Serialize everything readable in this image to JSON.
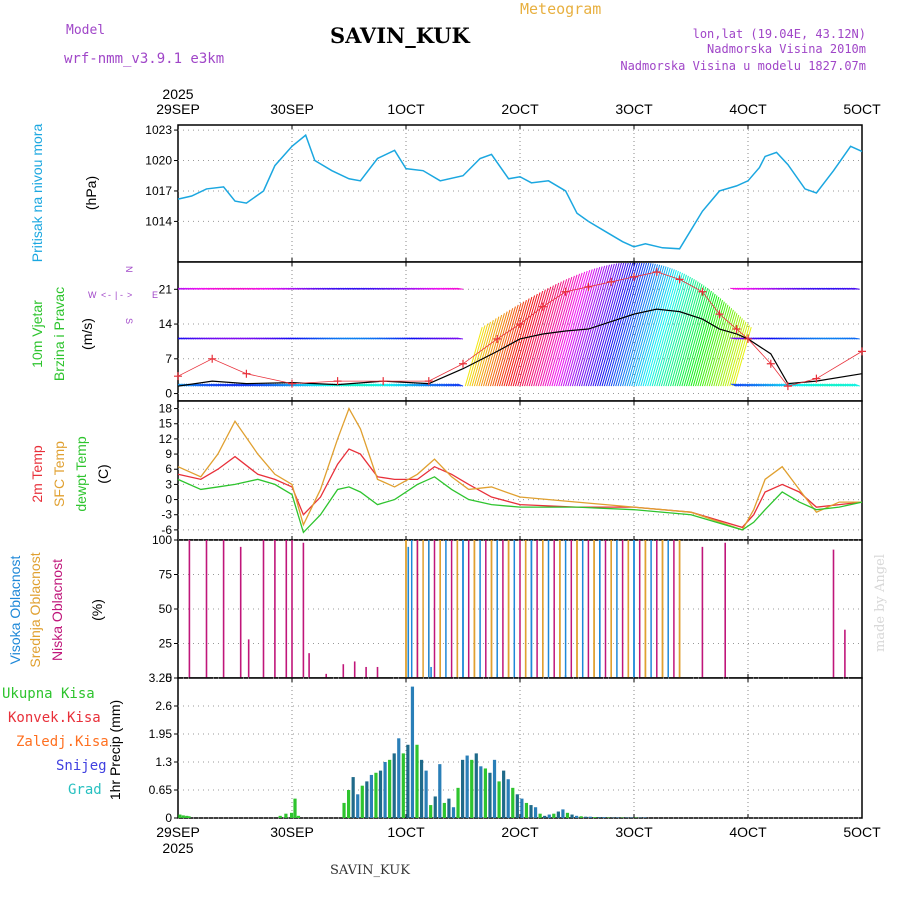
{
  "header": {
    "model_label": "Model",
    "model_name": "wrf-nmm_v3.9.1  e3km",
    "station": "SAVIN_KUK",
    "title": "Meteogram",
    "coords": "lon,lat (19.04E, 43.12N)",
    "elevation": "Nadmorska Visina 2010m",
    "model_elevation": "Nadmorska Visina u modelu 1827.07m",
    "footer_station": "SAVIN_KUK",
    "credit": "made by Angel"
  },
  "time_axis": {
    "year": "2025",
    "labels": [
      "29SEP",
      "30SEP",
      "1OCT",
      "2OCT",
      "3OCT",
      "4OCT",
      "5OCT"
    ],
    "days": 6
  },
  "colors": {
    "pressure": "#1ba7e0",
    "temp2m": "#e8303a",
    "sfctemp": "#e0a030",
    "dewpt": "#2ec42e",
    "cloud_high": "#1e88d8",
    "cloud_mid": "#e0a030",
    "cloud_low": "#c0167a",
    "rain_total": "#2ec42e",
    "rain_conv": "#e8303a",
    "snow": "#4040e0",
    "wind_speed": "#000000",
    "gust": "#e8303a",
    "purple": "#a046c8",
    "orange": "#e8b040"
  },
  "chart_data": [
    {
      "type": "line",
      "panel": "pressure",
      "ylabel_1": "Pritisak na nivou mora",
      "ylabel_unit": "(hPa)",
      "yticks": [
        "1014",
        "1017",
        "1020",
        "1023"
      ],
      "ylim": [
        1010,
        1023.5
      ],
      "series": [
        {
          "name": "Pritisak na nivou mora",
          "x": [
            0,
            0.12,
            0.25,
            0.4,
            0.5,
            0.6,
            0.75,
            0.85,
            1.0,
            1.12,
            1.2,
            1.35,
            1.5,
            1.6,
            1.75,
            1.9,
            2.0,
            2.15,
            2.3,
            2.5,
            2.65,
            2.75,
            2.9,
            3.0,
            3.1,
            3.25,
            3.4,
            3.5,
            3.6,
            3.75,
            3.9,
            4.0,
            4.1,
            4.25,
            4.4,
            4.6,
            4.75,
            4.9,
            5.0,
            5.1,
            5.15,
            5.25,
            5.35,
            5.5,
            5.6,
            5.75,
            5.9,
            6.0
          ],
          "values": [
            1016.2,
            1016.5,
            1017.2,
            1017.4,
            1016.0,
            1015.8,
            1017.0,
            1019.5,
            1021.4,
            1022.5,
            1020.0,
            1019.0,
            1018.2,
            1018.0,
            1020.2,
            1021.0,
            1019.2,
            1019.0,
            1018.0,
            1018.5,
            1020.2,
            1020.6,
            1018.2,
            1018.4,
            1017.8,
            1018.0,
            1017.0,
            1014.8,
            1014.0,
            1013.0,
            1012.0,
            1011.5,
            1011.8,
            1011.4,
            1011.3,
            1015.0,
            1017.0,
            1017.5,
            1018.0,
            1019.3,
            1020.4,
            1020.8,
            1019.6,
            1017.2,
            1016.8,
            1019.0,
            1021.4,
            1020.9
          ]
        }
      ]
    },
    {
      "type": "line",
      "panel": "wind",
      "ylabel_1": "10m Vjetar",
      "ylabel_2": "Brzina i Pravac",
      "ylabel_unit": "(m/s)",
      "compass": [
        "W",
        "<",
        "-",
        "|",
        "-",
        ">",
        "E",
        "N",
        "S"
      ],
      "yticks": [
        "0",
        "7",
        "14",
        "21"
      ],
      "ylim": [
        -1.5,
        26.5
      ],
      "series": [
        {
          "name": "Brzina",
          "x": [
            0,
            0.3,
            0.6,
            1.0,
            1.4,
            1.8,
            2.2,
            2.5,
            2.8,
            3.0,
            3.2,
            3.4,
            3.6,
            3.8,
            4.0,
            4.2,
            4.4,
            4.6,
            4.75,
            4.9,
            5.0,
            5.2,
            5.35,
            5.6,
            6.0
          ],
          "values": [
            1.5,
            2.5,
            2.0,
            2.2,
            1.8,
            2.5,
            2.0,
            5.0,
            8.5,
            11.0,
            12.0,
            12.6,
            13.0,
            14.5,
            16.0,
            17.0,
            16.5,
            15.0,
            13.0,
            12.0,
            11.0,
            8.0,
            2.0,
            2.5,
            4.0
          ]
        },
        {
          "name": "Udari",
          "x": [
            0,
            0.3,
            0.6,
            1.0,
            1.4,
            1.8,
            2.2,
            2.5,
            2.8,
            3.0,
            3.2,
            3.4,
            3.6,
            3.8,
            4.0,
            4.2,
            4.4,
            4.6,
            4.75,
            4.9,
            5.0,
            5.2,
            5.35,
            5.6,
            6.0
          ],
          "values": [
            3.5,
            7.0,
            4.0,
            2.0,
            2.5,
            2.5,
            2.5,
            6.0,
            11.0,
            14.0,
            17.5,
            20.5,
            21.5,
            22.5,
            23.5,
            24.5,
            23.0,
            20.5,
            16.0,
            13.0,
            11.0,
            6.0,
            1.5,
            3.0,
            8.5
          ]
        }
      ]
    },
    {
      "type": "line",
      "panel": "temperature",
      "ylabel_1": "2m Temp",
      "ylabel_2": "SFC Temp",
      "ylabel_3": "dewpt Temp",
      "ylabel_unit": "(C)",
      "yticks": [
        "-6",
        "-3",
        "0",
        "3",
        "6",
        "9",
        "12",
        "15",
        "18"
      ],
      "ylim": [
        -8,
        19.5
      ],
      "series": [
        {
          "name": "2m Temp",
          "x": [
            0,
            0.2,
            0.35,
            0.5,
            0.7,
            0.85,
            1.0,
            1.1,
            1.25,
            1.4,
            1.5,
            1.6,
            1.75,
            1.9,
            2.1,
            2.25,
            2.4,
            2.55,
            2.75,
            3.0,
            3.5,
            4.0,
            4.5,
            4.95,
            5.05,
            5.15,
            5.3,
            5.45,
            5.6,
            5.8,
            6.0
          ],
          "values": [
            5.0,
            4.0,
            6.0,
            8.5,
            5.0,
            4.0,
            2.5,
            -3.0,
            0.5,
            7.0,
            10.0,
            9.0,
            4.5,
            4.0,
            4.0,
            6.5,
            5.0,
            3.0,
            0.5,
            -1.0,
            -1.5,
            -1.5,
            -2.5,
            -5.5,
            -3.0,
            1.5,
            3.0,
            1.5,
            -1.5,
            -1.0,
            -0.5
          ]
        },
        {
          "name": "SFC Temp",
          "x": [
            0,
            0.2,
            0.35,
            0.5,
            0.7,
            0.85,
            1.0,
            1.1,
            1.25,
            1.4,
            1.5,
            1.6,
            1.75,
            1.9,
            2.1,
            2.25,
            2.4,
            2.55,
            2.75,
            3.0,
            3.5,
            4.0,
            4.5,
            4.95,
            5.05,
            5.15,
            5.3,
            5.45,
            5.6,
            5.8,
            6.0
          ],
          "values": [
            6.5,
            4.5,
            9.0,
            15.5,
            9.0,
            5.0,
            3.0,
            -5.0,
            2.0,
            12.0,
            18.0,
            14.0,
            4.0,
            2.5,
            5.0,
            8.0,
            4.5,
            2.0,
            2.5,
            0.5,
            -0.5,
            -1.5,
            -2.5,
            -6.0,
            -2.0,
            4.0,
            6.5,
            2.0,
            -2.5,
            -0.5,
            -0.5
          ]
        },
        {
          "name": "dewpt Temp",
          "x": [
            0,
            0.2,
            0.35,
            0.5,
            0.7,
            0.85,
            1.0,
            1.1,
            1.25,
            1.4,
            1.5,
            1.6,
            1.75,
            1.9,
            2.1,
            2.25,
            2.4,
            2.55,
            2.75,
            3.0,
            3.5,
            4.0,
            4.5,
            4.95,
            5.05,
            5.15,
            5.3,
            5.45,
            5.6,
            5.8,
            6.0
          ],
          "values": [
            4.0,
            2.0,
            2.5,
            3.0,
            4.0,
            3.0,
            1.0,
            -6.5,
            -3.0,
            2.0,
            2.5,
            1.5,
            -1.0,
            0.0,
            3.0,
            4.5,
            2.0,
            0.0,
            -1.0,
            -1.5,
            -1.5,
            -2.0,
            -3.0,
            -6.0,
            -4.5,
            -2.0,
            1.5,
            -0.5,
            -2.0,
            -1.5,
            -0.5
          ]
        }
      ]
    },
    {
      "type": "bar",
      "panel": "clouds",
      "ylabel_1": "Visoka Oblacnost",
      "ylabel_2": "Srednja Oblacnost",
      "ylabel_3": "Niska Oblacnost",
      "ylabel_unit": "(%)",
      "yticks": [
        "0",
        "25",
        "50",
        "75",
        "100"
      ],
      "ylim": [
        0,
        100
      ],
      "series": [
        {
          "name": "Niska Oblacnost",
          "x": [
            0.1,
            0.25,
            0.4,
            0.55,
            0.62,
            0.75,
            0.85,
            0.95,
            1.0,
            1.1,
            1.15,
            1.3,
            1.45,
            1.55,
            1.65,
            1.75,
            4.6,
            4.8,
            5.75,
            5.85
          ],
          "values": [
            100,
            100,
            100,
            95,
            28,
            100,
            100,
            100,
            100,
            98,
            18,
            3,
            10,
            12,
            8,
            8,
            95,
            98,
            93,
            35
          ]
        },
        {
          "name": "Srednja Oblacnost",
          "x": [
            2.0,
            2.1,
            2.2,
            2.3,
            2.45,
            2.6,
            2.75,
            2.9,
            3.05,
            3.2,
            3.35,
            3.5,
            3.65,
            3.8,
            3.95,
            4.1,
            4.25,
            4.4
          ],
          "values": [
            100,
            100,
            100,
            100,
            100,
            100,
            100,
            100,
            100,
            100,
            100,
            100,
            100,
            100,
            100,
            100,
            100,
            100
          ]
        },
        {
          "name": "Visoka Oblacnost",
          "x": [
            2.02,
            2.22,
            2.5,
            2.8,
            3.1,
            3.4,
            3.7,
            4.0
          ],
          "values": [
            95,
            8,
            100,
            3,
            100,
            2,
            100,
            100
          ]
        }
      ]
    },
    {
      "type": "bar",
      "panel": "precipitation",
      "legend": [
        "Ukupna Kisa",
        "Konvek.Kisa",
        "Zaledj.Kisa",
        "Snijeg",
        "Grad"
      ],
      "ylabel_1": "1hr Precip",
      "ylabel_unit": "(mm)",
      "yticks": [
        "0",
        "0.65",
        "1.3",
        "1.95",
        "2.6",
        "3.25"
      ],
      "ylim": [
        0,
        3.25
      ],
      "series": [
        {
          "name": "Ukupna Kisa",
          "x": [
            0.02,
            0.05,
            0.08,
            0.1,
            0.9,
            0.95,
            1.0,
            1.03,
            1.06,
            1.1,
            1.14,
            1.18,
            1.22,
            1.26,
            1.3,
            1.34,
            1.38,
            1.42,
            1.46,
            1.5,
            1.54,
            1.58,
            1.62,
            1.66,
            1.7,
            1.74,
            1.78,
            1.82,
            1.86,
            1.9,
            1.94,
            1.98,
            2.02,
            2.06,
            2.1,
            2.14,
            2.18,
            2.22,
            2.26,
            2.3,
            2.34,
            2.38,
            2.42,
            2.46,
            2.5,
            2.54,
            2.58,
            2.62,
            2.66,
            2.7,
            2.74,
            2.78,
            2.82,
            2.86,
            2.9,
            2.94,
            2.98,
            3.02,
            3.06,
            3.1,
            3.14,
            3.18,
            3.22,
            3.26,
            3.3,
            3.34,
            3.38,
            3.42,
            3.46,
            3.5,
            3.54,
            3.58,
            3.62,
            3.66,
            3.7,
            3.74,
            3.78,
            3.82,
            3.86,
            3.9,
            3.94,
            3.98,
            4.02,
            4.06,
            4.1
          ],
          "values": [
            0.08,
            0.06,
            0.05,
            0.04,
            0.05,
            0.1,
            0.12,
            0.45,
            0.05,
            0.0,
            0.0,
            0.0,
            0.0,
            0.0,
            0.0,
            0.0,
            0.0,
            0.0,
            0.35,
            0.65,
            0.95,
            0.55,
            0.75,
            0.85,
            1.0,
            1.05,
            1.1,
            1.3,
            1.35,
            1.5,
            1.85,
            1.5,
            1.7,
            3.05,
            1.7,
            1.35,
            1.1,
            0.3,
            0.5,
            1.25,
            0.35,
            0.45,
            0.25,
            0.7,
            1.35,
            1.45,
            1.35,
            1.5,
            1.2,
            1.15,
            1.05,
            1.35,
            0.85,
            1.1,
            0.9,
            0.7,
            0.55,
            0.45,
            0.35,
            0.3,
            0.25,
            0.1,
            0.05,
            0.08,
            0.1,
            0.15,
            0.2,
            0.12,
            0.08,
            0.05,
            0.04,
            0.03,
            0.03,
            0.02,
            0.02,
            0.02,
            0.01,
            0.01,
            0.01,
            0.01,
            0.01,
            0.01,
            0.01,
            0.01,
            0.01
          ]
        }
      ]
    }
  ]
}
